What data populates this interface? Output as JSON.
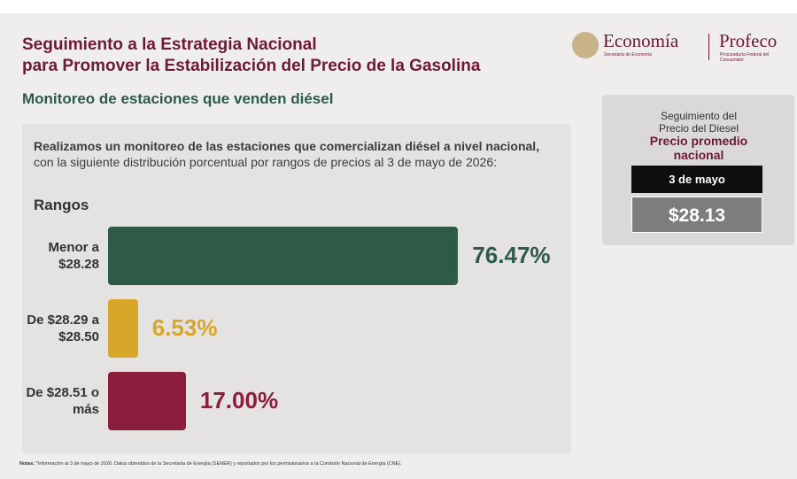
{
  "header": {
    "title_lines": [
      "Seguimiento a la Estrategia Nacional",
      "para Promover la Estabilización del Precio de la Gasolina"
    ],
    "subtitle": "Monitoreo de estaciones que venden diésel",
    "logo_economia": "Economía",
    "logo_economia_sub": "Secretaría de Economía",
    "logo_profeco": "Profeco",
    "logo_profeco_sub": "Procuraduría Federal del Consumidor"
  },
  "intro_lines": [
    "Realizamos un monitoreo de las estaciones que comercializan diésel a nivel nacional,",
    "con la siguiente distribución porcentual por rangos de precios al 3 de mayo de 2026:"
  ],
  "chart_data": {
    "type": "bar",
    "orientation": "horizontal",
    "title": "Rangos",
    "categories": [
      "Menor a $28.28",
      "De $28.29 a $28.50",
      "De $28.51 o más"
    ],
    "values": [
      76.47,
      6.53,
      17.0
    ],
    "value_labels": [
      "76.47%",
      "6.53%",
      "17.00%"
    ],
    "colors": [
      "#2e5b48",
      "#d8a628",
      "#8b1e3d"
    ]
  },
  "sidebar": {
    "heading": "Seguimiento del Precio del Diesel",
    "label": "Precio promedio nacional",
    "date": "3 de mayo",
    "price": "$28.13"
  },
  "footer": {
    "label": "Notas:",
    "text": "*Información al 3 de mayo de 2026. Datos obtenidos de la Secretaría de Energía (SENER) y reportados por los permisionarios a la Comisión Nacional de Energía (CNE)."
  }
}
